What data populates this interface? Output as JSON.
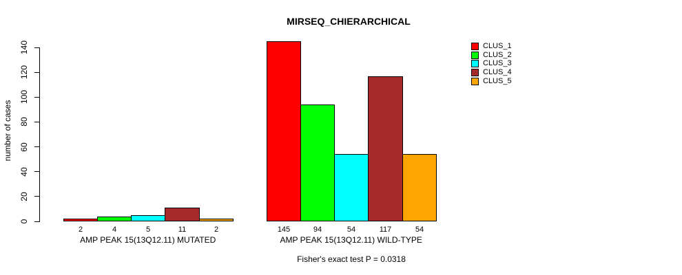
{
  "chart_data": {
    "type": "bar",
    "title": "MIRSEQ_CHIERARCHICAL",
    "ylabel": "number of cases",
    "ylim": [
      0,
      140
    ],
    "yticks": [
      0,
      20,
      40,
      60,
      80,
      100,
      120,
      140
    ],
    "grid": false,
    "legend_position": "top-right",
    "series": [
      {
        "name": "CLUS_1",
        "color": "#ff0000"
      },
      {
        "name": "CLUS_2",
        "color": "#00ff00"
      },
      {
        "name": "CLUS_3",
        "color": "#00ffff"
      },
      {
        "name": "CLUS_4",
        "color": "#a52a2a"
      },
      {
        "name": "CLUS_5",
        "color": "#ffa500"
      }
    ],
    "groups": [
      {
        "label": "AMP PEAK 15(13Q12.11) MUTATED",
        "values": [
          2,
          4,
          5,
          11,
          2
        ]
      },
      {
        "label": "AMP PEAK 15(13Q12.11) WILD-TYPE",
        "values": [
          145,
          94,
          54,
          117,
          54
        ]
      }
    ],
    "bar_value_labels_shown": true,
    "annotation": "Fisher's exact test P = 0.0318"
  }
}
